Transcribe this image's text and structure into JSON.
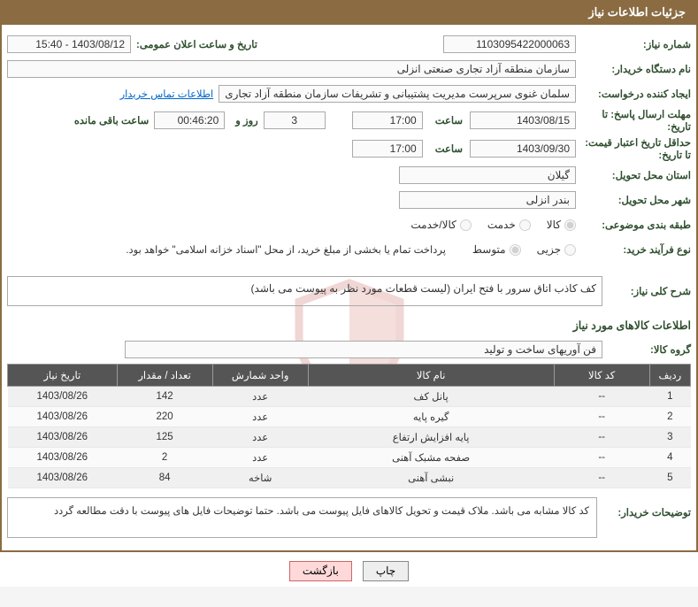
{
  "header": {
    "title": "جزئیات اطلاعات نیاز"
  },
  "fields": {
    "need_num_label": "شماره نیاز:",
    "need_num": "1103095422000063",
    "announce_label": "تاریخ و ساعت اعلان عمومی:",
    "announce": "1403/08/12 - 15:40",
    "buyer_org_label": "نام دستگاه خریدار:",
    "buyer_org": "سازمان منطقه آزاد تجاری  صنعتی انزلی",
    "creator_label": "ایجاد کننده درخواست:",
    "creator": "سلمان غنوی سرپرست مدیریت پشتیبانی و تشریفات سازمان منطقه آزاد تجاری",
    "contact_link": "اطلاعات تماس خریدار",
    "deadline_send_label": "مهلت ارسال پاسخ: تا تاریخ:",
    "deadline_send_date": "1403/08/15",
    "time_label": "ساعت",
    "deadline_send_time": "17:00",
    "days_count": "3",
    "days_and": "روز و",
    "countdown": "00:46:20",
    "remain_label": "ساعت باقی مانده",
    "validity_label": "حداقل تاریخ اعتبار قیمت: تا تاریخ:",
    "validity_date": "1403/09/30",
    "validity_time": "17:00",
    "province_label": "استان محل تحویل:",
    "province": "گیلان",
    "city_label": "شهر محل تحویل:",
    "city": "بندر انزلی",
    "subject_cat_label": "طبقه بندی موضوعی:",
    "buy_process_label": "نوع فرآیند خرید:",
    "treasury_note": "پرداخت تمام یا بخشی از مبلغ خرید، از محل \"اسناد خزانه اسلامی\" خواهد بود.",
    "desc_label": "شرح کلی نیاز:",
    "desc_text": "کف کاذب اتاق سرور با فتح ایران (لیست قطعات مورد نظر به پیوست می باشد)",
    "goods_info_title": "اطلاعات کالاهای مورد نیاز",
    "group_label": "گروه کالا:",
    "group_value": "فن آوریهای ساخت و تولید",
    "buyer_note_label": "توضیحات خریدار:",
    "buyer_note_text": "کد کالا مشابه می باشد. ملاک قیمت و تحویل کالاهای فایل پیوست می باشد. حتما توضیحات فایل های پیوست با دقت مطالعه گردد"
  },
  "radios": {
    "subject": [
      {
        "label": "کالا",
        "checked": true
      },
      {
        "label": "خدمت",
        "checked": false
      },
      {
        "label": "کالا/خدمت",
        "checked": false
      }
    ],
    "process": [
      {
        "label": "جزیی",
        "checked": false
      },
      {
        "label": "متوسط",
        "checked": true
      }
    ]
  },
  "table": {
    "headers": [
      "ردیف",
      "کد کالا",
      "نام کالا",
      "واحد شمارش",
      "تعداد / مقدار",
      "تاریخ نیاز"
    ],
    "col_widths": [
      "6%",
      "14%",
      "36%",
      "14%",
      "14%",
      "16%"
    ],
    "rows": [
      [
        "1",
        "--",
        "پانل کف",
        "عدد",
        "142",
        "1403/08/26"
      ],
      [
        "2",
        "--",
        "گیره پایه",
        "عدد",
        "220",
        "1403/08/26"
      ],
      [
        "3",
        "--",
        "پایه افزایش ارتفاع",
        "عدد",
        "125",
        "1403/08/26"
      ],
      [
        "4",
        "--",
        "صفحه مشبک آهنی",
        "عدد",
        "2",
        "1403/08/26"
      ],
      [
        "5",
        "--",
        "نبشی آهنی",
        "شاخه",
        "84",
        "1403/08/26"
      ]
    ]
  },
  "buttons": {
    "print": "چاپ",
    "back": "بازگشت"
  },
  "watermark": {
    "text": "AriaTender.net"
  },
  "colors": {
    "header_bg": "#8a6b42",
    "th_bg": "#555555"
  }
}
